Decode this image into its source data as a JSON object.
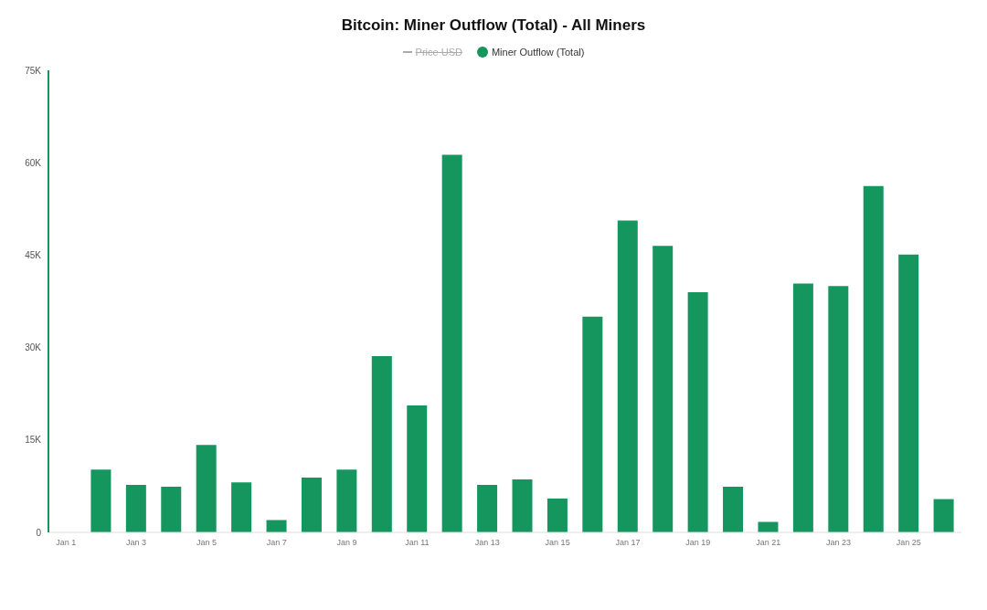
{
  "chart_data": {
    "type": "bar",
    "title": "Bitcoin: Miner Outflow (Total) - All Miners",
    "categories": [
      "Jan 1",
      null,
      "Jan 3",
      null,
      "Jan 5",
      null,
      "Jan 7",
      null,
      "Jan 9",
      null,
      "Jan 11",
      null,
      "Jan 13",
      null,
      "Jan 15",
      null,
      "Jan 17",
      null,
      "Jan 19",
      null,
      "Jan 21",
      null,
      "Jan 23",
      null,
      "Jan 25",
      null
    ],
    "series": [
      {
        "name": "Price USD",
        "type": "line",
        "color": "#aaaaaa",
        "values": [
          null,
          null,
          null,
          null,
          null,
          null,
          null,
          null,
          null,
          null,
          null,
          null,
          null,
          null,
          null,
          null,
          null,
          null,
          null,
          null,
          null,
          null,
          null,
          null,
          null,
          null
        ]
      },
      {
        "name": "Miner Outflow (Total)",
        "color": "#16965f",
        "values": [
          null,
          10200,
          7700,
          7400,
          14200,
          8100,
          2000,
          8900,
          10200,
          28600,
          20600,
          61300,
          7700,
          8600,
          5500,
          35000,
          50600,
          46500,
          39000,
          7400,
          1700,
          40400,
          40000,
          56200,
          45100,
          5400
        ]
      }
    ],
    "ylim": [
      0,
      75000
    ],
    "yticks": [
      {
        "value": 0,
        "label": "0"
      },
      {
        "value": 15000,
        "label": "15K"
      },
      {
        "value": 30000,
        "label": "30K"
      },
      {
        "value": 45000,
        "label": "45K"
      },
      {
        "value": 60000,
        "label": "60K"
      },
      {
        "value": 75000,
        "label": "75K"
      }
    ],
    "legend": "top"
  }
}
